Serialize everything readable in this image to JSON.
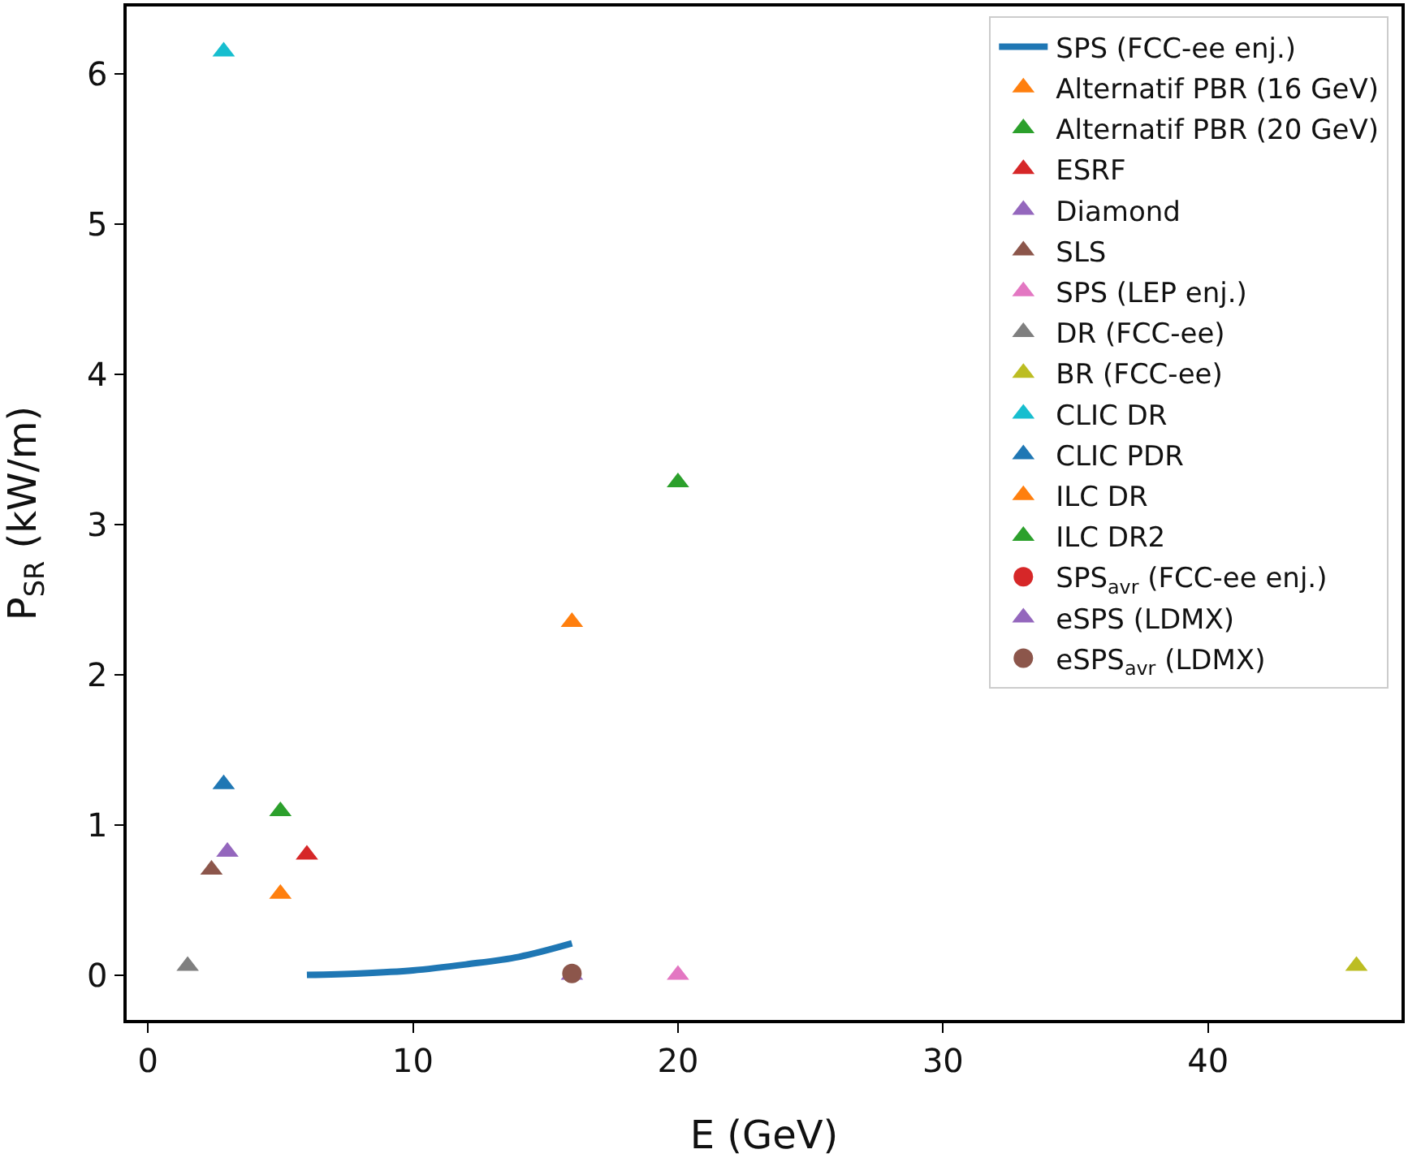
{
  "chart_data": {
    "type": "scatter",
    "xlabel": "E (GeV)",
    "ylabel": "P$_{SR}$ (kW/m)",
    "xlim": [
      -0.8,
      47.3
    ],
    "ylim": [
      -0.3,
      6.45
    ],
    "xticks": [
      0,
      10,
      20,
      30,
      40
    ],
    "yticks": [
      0,
      1,
      2,
      3,
      4,
      5,
      6
    ],
    "grid": false,
    "legend": "top right",
    "marker": "triangle",
    "series": [
      {
        "name": "SPS (FCC-ee enj.)",
        "type": "line",
        "marker": "none",
        "line_style": "solid",
        "color": "#1f77b4",
        "x": [
          6,
          8,
          10,
          12,
          14,
          16
        ],
        "values": [
          0,
          0.01,
          0.03,
          0.07,
          0.12,
          0.21
        ]
      },
      {
        "name": "Alternatif PBR (16 GeV)",
        "color": "#ff7f0e",
        "x": [
          16
        ],
        "values": [
          2.35
        ]
      },
      {
        "name": "Alternatif PBR (20 GeV)",
        "color": "#2ca02c",
        "x": [
          20
        ],
        "values": [
          3.28
        ]
      },
      {
        "name": "ESRF",
        "color": "#d62728",
        "x": [
          6
        ],
        "values": [
          0.8
        ]
      },
      {
        "name": "Diamond",
        "color": "#9467bd",
        "x": [
          3
        ],
        "values": [
          0.82
        ]
      },
      {
        "name": "SLS",
        "color": "#8c564b",
        "x": [
          2.4
        ],
        "values": [
          0.7
        ]
      },
      {
        "name": "SPS (LEP enj.)",
        "color": "#e377c2",
        "x": [
          20
        ],
        "values": [
          0
        ]
      },
      {
        "name": "DR (FCC-ee)",
        "color": "#7f7f7f",
        "x": [
          1.5
        ],
        "values": [
          0.06
        ]
      },
      {
        "name": "BR (FCC-ee)",
        "color": "#bcbd22",
        "x": [
          45.6
        ],
        "values": [
          0.06
        ]
      },
      {
        "name": "CLIC DR",
        "color": "#17becf",
        "x": [
          2.86
        ],
        "values": [
          6.15
        ]
      },
      {
        "name": "CLIC PDR",
        "color": "#1f77b4",
        "x": [
          2.86
        ],
        "values": [
          1.27
        ]
      },
      {
        "name": "ILC DR",
        "color": "#ff7f0e",
        "x": [
          5
        ],
        "values": [
          0.54
        ]
      },
      {
        "name": "ILC DR2",
        "color": "#2ca02c",
        "x": [
          5
        ],
        "values": [
          1.09
        ]
      },
      {
        "name": "SPS$_{avr}$ (FCC-ee enj.)",
        "marker": "circle",
        "color": "#d62728",
        "x": [
          null
        ],
        "values": [
          null
        ]
      },
      {
        "name": "eSPS (LDMX)",
        "color": "#9467bd",
        "x": [
          16
        ],
        "values": [
          0
        ]
      },
      {
        "name": "eSPS$_{avr}$ (LDMX)",
        "marker": "circle",
        "color": "#8c564b",
        "x": [
          16
        ],
        "values": [
          0.01
        ]
      }
    ]
  }
}
